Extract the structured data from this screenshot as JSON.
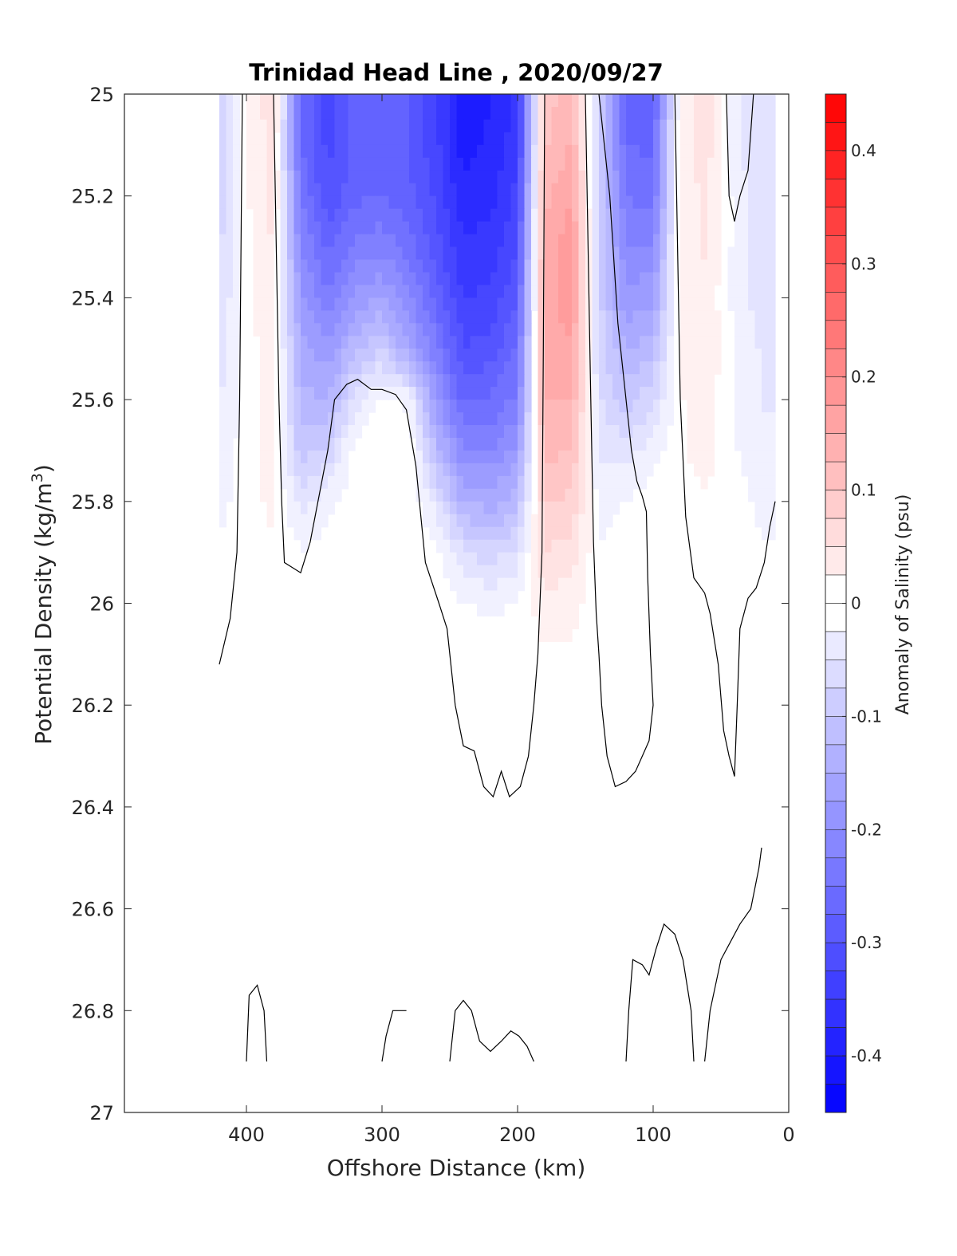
{
  "chart_data": {
    "type": "heatmap",
    "subtype": "filled-contour",
    "title": "Trinidad Head Line , 2020/09/27",
    "xlabel": "Offshore Distance (km)",
    "ylabel_text": "Potential Density (kg/m",
    "ylabel_sup": "3",
    "ylabel_close": ")",
    "xlim": [
      490,
      0
    ],
    "x_direction": "reversed",
    "ylim": [
      25,
      27
    ],
    "y_direction": "reversed",
    "xticks": [
      400,
      300,
      200,
      100,
      0
    ],
    "xtick_labels": [
      "400",
      "300",
      "200",
      "100",
      "0"
    ],
    "yticks": [
      25,
      25.2,
      25.4,
      25.6,
      25.8,
      26,
      26.2,
      26.4,
      26.6,
      26.8,
      27
    ],
    "ytick_labels": [
      "25",
      "25.2",
      "25.4",
      "25.6",
      "25.8",
      "26",
      "26.2",
      "26.4",
      "26.6",
      "26.8",
      "27"
    ],
    "grid": false,
    "colorbar": {
      "label": "Anomaly of Salinity (psu)",
      "range": [
        -0.45,
        0.45
      ],
      "level_step": 0.025,
      "ticks": [
        0.4,
        0.3,
        0.2,
        0.1,
        0,
        -0.1,
        -0.2,
        -0.3,
        -0.4
      ],
      "tick_labels": [
        "0.4",
        "0.3",
        "0.2",
        "0.1",
        "0",
        "-0.1",
        "-0.2",
        "-0.3",
        "-0.4"
      ],
      "colormap": "blue-white-red",
      "color_low": "#0000ff",
      "color_mid": "#ffffff",
      "color_high": "#ff0000"
    },
    "zero_contour_color": "#000000",
    "data_domain": {
      "x": [
        420,
        10
      ],
      "y": [
        25,
        26.9
      ]
    },
    "anomaly_field": {
      "x_km": [
        420,
        400,
        380,
        360,
        340,
        320,
        300,
        280,
        260,
        240,
        220,
        200,
        180,
        160,
        140,
        120,
        100,
        80,
        60,
        40,
        20
      ],
      "density": [
        25.0,
        25.1,
        25.2,
        25.3,
        25.4,
        25.5,
        25.6,
        25.7,
        25.8,
        25.9,
        26.0,
        26.1,
        26.2,
        26.3,
        26.4,
        26.5,
        26.6,
        26.7,
        26.8,
        26.9
      ],
      "salinity_anomaly_psu": [
        [
          -0.1,
          0.01,
          0.06,
          -0.26,
          -0.33,
          -0.28,
          -0.27,
          -0.29,
          -0.33,
          -0.4,
          -0.39,
          -0.35,
          0.1,
          0.13,
          -0.08,
          -0.27,
          -0.28,
          0.02,
          0.05,
          -0.03,
          -0.06
        ],
        [
          -0.09,
          0.01,
          0.05,
          -0.26,
          -0.32,
          -0.28,
          -0.27,
          -0.29,
          -0.33,
          -0.4,
          -0.38,
          -0.35,
          0.11,
          0.14,
          -0.08,
          -0.26,
          -0.27,
          0.03,
          0.05,
          -0.03,
          -0.06
        ],
        [
          -0.08,
          0.01,
          0.05,
          -0.24,
          -0.31,
          -0.27,
          -0.26,
          -0.28,
          -0.32,
          -0.38,
          -0.37,
          -0.33,
          0.13,
          0.16,
          -0.08,
          -0.24,
          -0.25,
          0.03,
          0.04,
          -0.02,
          -0.06
        ],
        [
          -0.07,
          0.0,
          0.04,
          -0.21,
          -0.27,
          -0.23,
          -0.22,
          -0.25,
          -0.3,
          -0.36,
          -0.35,
          -0.31,
          0.14,
          0.18,
          -0.08,
          -0.21,
          -0.21,
          0.03,
          0.04,
          -0.02,
          -0.05
        ],
        [
          -0.06,
          0.0,
          0.04,
          -0.18,
          -0.23,
          -0.18,
          -0.16,
          -0.21,
          -0.27,
          -0.34,
          -0.33,
          -0.29,
          0.15,
          0.18,
          -0.08,
          -0.18,
          -0.17,
          0.02,
          0.03,
          -0.02,
          -0.05
        ],
        [
          -0.05,
          0.0,
          0.03,
          -0.15,
          -0.18,
          -0.12,
          -0.09,
          -0.16,
          -0.23,
          -0.31,
          -0.3,
          -0.26,
          0.15,
          0.16,
          -0.07,
          -0.14,
          -0.12,
          0.02,
          0.03,
          -0.01,
          -0.04
        ],
        [
          -0.04,
          0.0,
          0.03,
          -0.13,
          -0.14,
          -0.05,
          0.0,
          -0.02,
          -0.18,
          -0.27,
          -0.26,
          -0.23,
          0.14,
          0.14,
          -0.06,
          -0.1,
          -0.07,
          0.01,
          0.02,
          -0.01,
          -0.04
        ],
        [
          -0.03,
          0.0,
          0.02,
          -0.1,
          -0.08,
          0.0,
          0.0,
          0.01,
          -0.12,
          -0.21,
          -0.21,
          -0.18,
          0.12,
          0.11,
          -0.04,
          -0.05,
          -0.02,
          0.01,
          0.02,
          -0.01,
          -0.03
        ],
        [
          -0.02,
          0.0,
          0.02,
          -0.05,
          -0.02,
          0.0,
          0.0,
          0.01,
          -0.05,
          -0.14,
          -0.15,
          -0.12,
          0.09,
          0.08,
          -0.02,
          -0.01,
          0.0,
          0.0,
          0.01,
          0.0,
          -0.02
        ],
        [
          -0.01,
          0.0,
          0.01,
          -0.01,
          0.0,
          0.0,
          0.0,
          0.01,
          0.0,
          -0.06,
          -0.08,
          -0.05,
          0.06,
          0.05,
          -0.01,
          0.0,
          0.0,
          0.0,
          0.01,
          0.0,
          -0.01
        ],
        [
          0.0,
          0.0,
          0.01,
          0.0,
          0.0,
          0.0,
          0.0,
          0.01,
          0.0,
          -0.01,
          -0.02,
          -0.01,
          0.03,
          0.02,
          0.0,
          0.0,
          0.0,
          0.0,
          0.01,
          0.0,
          0.0
        ],
        [
          0.0,
          0.0,
          0.01,
          0.01,
          0.0,
          0.0,
          0.0,
          0.01,
          0.0,
          0.0,
          0.0,
          0.0,
          0.01,
          0.01,
          0.0,
          0.0,
          0.0,
          0.0,
          0.01,
          0.01,
          0.0
        ],
        [
          0.0,
          0.0,
          0.0,
          0.0,
          0.0,
          0.0,
          0.0,
          0.01,
          0.0,
          0.0,
          0.0,
          0.0,
          0.0,
          0.0,
          0.0,
          0.0,
          0.0,
          0.0,
          0.01,
          0.01,
          0.0
        ],
        [
          0.0,
          0.0,
          0.0,
          0.01,
          0.01,
          0.01,
          0.01,
          0.01,
          0.0,
          0.0,
          0.0,
          0.0,
          0.0,
          0.0,
          0.0,
          0.0,
          0.0,
          0.0,
          0.01,
          0.01,
          0.0
        ],
        [
          0.01,
          0.0,
          0.0,
          0.01,
          0.01,
          0.01,
          0.01,
          0.01,
          0.01,
          0.0,
          0.0,
          0.0,
          0.0,
          0.0,
          0.0,
          0.0,
          0.0,
          0.0,
          0.01,
          0.01,
          0.0
        ],
        [
          0.01,
          0.0,
          0.0,
          0.01,
          0.01,
          0.01,
          0.01,
          0.01,
          0.01,
          0.01,
          0.01,
          0.0,
          0.0,
          0.0,
          0.01,
          0.0,
          0.0,
          0.0,
          0.01,
          0.01,
          0.0
        ],
        [
          0.0,
          0.0,
          0.0,
          0.01,
          0.01,
          0.01,
          0.01,
          0.01,
          0.0,
          0.01,
          0.01,
          0.0,
          0.0,
          0.0,
          0.01,
          0.0,
          0.0,
          0.0,
          0.01,
          0.0,
          0.0
        ],
        [
          0.01,
          0.0,
          0.0,
          0.01,
          0.01,
          0.01,
          0.01,
          0.0,
          0.0,
          0.0,
          0.0,
          0.0,
          0.0,
          0.0,
          0.0,
          0.0,
          0.0,
          0.0,
          0.0,
          -0.01,
          0.0
        ],
        [
          0.01,
          0.0,
          0.0,
          0.01,
          0.01,
          0.01,
          0.0,
          0.0,
          0.0,
          0.0,
          0.0,
          0.0,
          0.0,
          0.0,
          0.0,
          0.0,
          0.0,
          0.0,
          0.0,
          -0.01,
          0.0
        ],
        [
          0.01,
          0.0,
          0.0,
          0.01,
          0.01,
          0.01,
          0.0,
          0.0,
          0.0,
          0.0,
          0.0,
          0.0,
          0.0,
          0.0,
          0.0,
          0.0,
          -0.01,
          0.0,
          0.0,
          -0.01,
          0.0
        ]
      ]
    },
    "zero_contours": [
      [
        [
          420,
          26.12
        ],
        [
          412,
          26.03
        ],
        [
          407,
          25.9
        ],
        [
          405,
          25.6
        ],
        [
          404,
          25.3
        ],
        [
          403,
          25.0
        ]
      ],
      [
        [
          380,
          25.0
        ],
        [
          378,
          25.3
        ],
        [
          376,
          25.6
        ],
        [
          374,
          25.8
        ],
        [
          372,
          25.92
        ],
        [
          360,
          25.94
        ],
        [
          353,
          25.88
        ],
        [
          340,
          25.7
        ],
        [
          335,
          25.6
        ],
        [
          326,
          25.57
        ],
        [
          318,
          25.56
        ],
        [
          308,
          25.58
        ],
        [
          300,
          25.58
        ],
        [
          290,
          25.59
        ],
        [
          282,
          25.62
        ],
        [
          275,
          25.73
        ],
        [
          268,
          25.92
        ],
        [
          258,
          26.0
        ],
        [
          252,
          26.05
        ],
        [
          246,
          26.2
        ],
        [
          240,
          26.28
        ],
        [
          232,
          26.29
        ],
        [
          225,
          26.36
        ],
        [
          218,
          26.38
        ],
        [
          212,
          26.33
        ],
        [
          206,
          26.38
        ],
        [
          198,
          26.36
        ],
        [
          192,
          26.3
        ],
        [
          188,
          26.2
        ],
        [
          185,
          26.1
        ],
        [
          182,
          25.9
        ],
        [
          181,
          25.5
        ],
        [
          180,
          25.0
        ]
      ],
      [
        [
          150,
          25.0
        ],
        [
          148,
          25.3
        ],
        [
          146,
          25.6
        ],
        [
          144,
          25.88
        ],
        [
          142,
          26.02
        ],
        [
          140,
          26.1
        ],
        [
          138,
          26.2
        ],
        [
          134,
          26.3
        ],
        [
          128,
          26.36
        ],
        [
          120,
          26.35
        ],
        [
          113,
          26.33
        ],
        [
          108,
          26.3
        ],
        [
          103,
          26.27
        ],
        [
          100,
          26.2
        ],
        [
          102,
          26.1
        ],
        [
          104,
          25.95
        ],
        [
          105,
          25.82
        ],
        [
          108,
          25.79
        ],
        [
          112,
          25.76
        ],
        [
          116,
          25.7
        ],
        [
          120,
          25.6
        ],
        [
          126,
          25.45
        ],
        [
          132,
          25.2
        ],
        [
          140,
          25.0
        ]
      ],
      [
        [
          84,
          25.0
        ],
        [
          82,
          25.3
        ],
        [
          80,
          25.6
        ],
        [
          76,
          25.83
        ],
        [
          70,
          25.95
        ],
        [
          62,
          25.98
        ],
        [
          58,
          26.02
        ],
        [
          52,
          26.12
        ],
        [
          48,
          26.25
        ],
        [
          44,
          26.3
        ],
        [
          40,
          26.34
        ],
        [
          38,
          26.2
        ],
        [
          36,
          26.05
        ],
        [
          30,
          25.99
        ],
        [
          24,
          25.97
        ],
        [
          18,
          25.92
        ],
        [
          14,
          25.85
        ],
        [
          10,
          25.8
        ]
      ],
      [
        [
          46,
          25.0
        ],
        [
          44,
          25.2
        ],
        [
          40,
          25.25
        ],
        [
          36,
          25.2
        ],
        [
          30,
          25.15
        ],
        [
          26,
          25.0
        ]
      ],
      [
        [
          400,
          26.9
        ],
        [
          398,
          26.77
        ],
        [
          392,
          26.75
        ],
        [
          387,
          26.8
        ],
        [
          385,
          26.9
        ]
      ],
      [
        [
          300,
          26.9
        ],
        [
          297,
          26.85
        ],
        [
          292,
          26.8
        ],
        [
          282,
          26.8
        ]
      ],
      [
        [
          250,
          26.9
        ],
        [
          246,
          26.8
        ],
        [
          240,
          26.78
        ],
        [
          234,
          26.8
        ],
        [
          228,
          26.86
        ],
        [
          220,
          26.88
        ],
        [
          212,
          26.86
        ],
        [
          205,
          26.84
        ],
        [
          199,
          26.85
        ],
        [
          193,
          26.87
        ],
        [
          188,
          26.9
        ]
      ],
      [
        [
          120,
          26.9
        ],
        [
          118,
          26.8
        ],
        [
          115,
          26.7
        ],
        [
          108,
          26.71
        ],
        [
          103,
          26.73
        ],
        [
          98,
          26.68
        ],
        [
          92,
          26.63
        ],
        [
          84,
          26.65
        ],
        [
          78,
          26.7
        ],
        [
          72,
          26.8
        ],
        [
          70,
          26.9
        ]
      ],
      [
        [
          62,
          26.9
        ],
        [
          58,
          26.8
        ],
        [
          50,
          26.7
        ],
        [
          44,
          26.67
        ],
        [
          36,
          26.63
        ],
        [
          28,
          26.6
        ],
        [
          22,
          26.52
        ],
        [
          20,
          26.48
        ]
      ]
    ]
  }
}
